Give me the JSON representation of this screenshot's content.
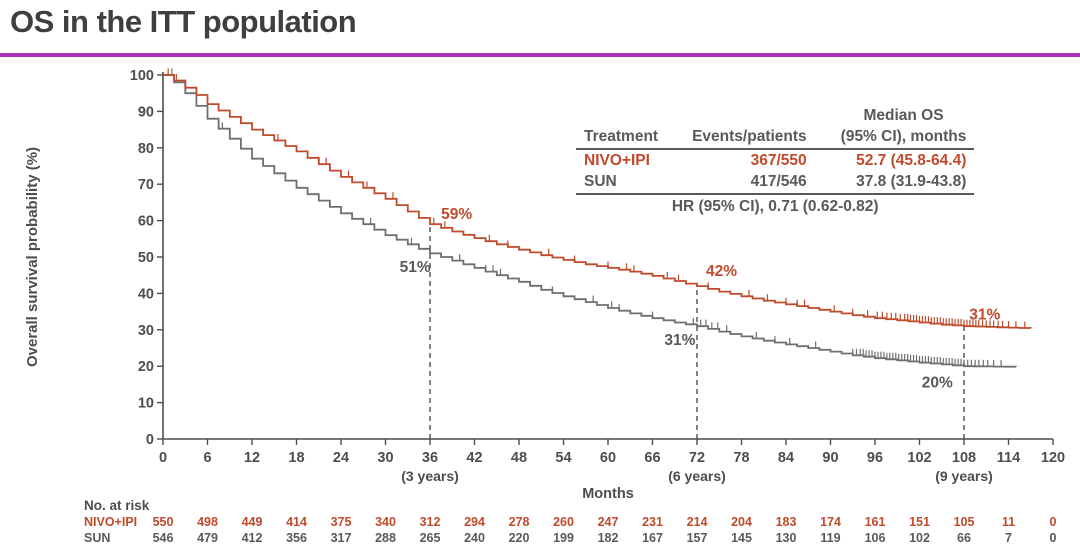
{
  "page": {
    "title": "OS in the ITT population",
    "accent_rule_color": "#ab31ba"
  },
  "summary_table": {
    "col_headers": {
      "treatment": "Treatment",
      "events": "Events/patients",
      "median_line1": "Median OS",
      "median_line2": "(95% CI), months"
    },
    "rows": [
      {
        "treatment": "NIVO+IPI",
        "events": "367/550",
        "median": "52.7 (45.8-64.4)",
        "color": "#c04a2c"
      },
      {
        "treatment": "SUN",
        "events": "417/546",
        "median": "37.8 (31.9-43.8)",
        "color": "#595959"
      }
    ],
    "footer": "HR (95% CI), 0.71 (0.62-0.82)"
  },
  "chart_data": {
    "type": "line",
    "subtype": "kaplan-meier-step",
    "x_axis": {
      "label": "Months",
      "min": 0,
      "max": 120,
      "tick_interval": 6,
      "bold_ticks": [
        36,
        72,
        108
      ],
      "milestone_labels": [
        {
          "month": 36,
          "label": "(3 years)"
        },
        {
          "month": 72,
          "label": "(6 years)"
        },
        {
          "month": 108,
          "label": "(9 years)"
        }
      ]
    },
    "y_axis": {
      "label": "Overall survival probability (%)",
      "min": 0,
      "max": 100,
      "tick_interval": 10
    },
    "series": [
      {
        "name": "NIVO+IPI",
        "color": "#c04a2c",
        "survival_points": [
          [
            0,
            100
          ],
          [
            1.5,
            98.5
          ],
          [
            3,
            96.5
          ],
          [
            4.5,
            94.5
          ],
          [
            6,
            92
          ],
          [
            9,
            88.5
          ],
          [
            12,
            85
          ],
          [
            15,
            82
          ],
          [
            18,
            79
          ],
          [
            21,
            75.5
          ],
          [
            24,
            72
          ],
          [
            27,
            69
          ],
          [
            30,
            66
          ],
          [
            33,
            62.5
          ],
          [
            36,
            59
          ],
          [
            39,
            57
          ],
          [
            42,
            55.2
          ],
          [
            45,
            53.5
          ],
          [
            48,
            52
          ],
          [
            51,
            50.5
          ],
          [
            54,
            49.2
          ],
          [
            57,
            48
          ],
          [
            60,
            47
          ],
          [
            63,
            46
          ],
          [
            66,
            44.8
          ],
          [
            69,
            43.4
          ],
          [
            72,
            42
          ],
          [
            75,
            40.5
          ],
          [
            78,
            39.2
          ],
          [
            81,
            38
          ],
          [
            84,
            37
          ],
          [
            87,
            36
          ],
          [
            90,
            35
          ],
          [
            93,
            34
          ],
          [
            96,
            33.2
          ],
          [
            99,
            32.6
          ],
          [
            102,
            32
          ],
          [
            105,
            31.4
          ],
          [
            108,
            31
          ],
          [
            111,
            30.8
          ],
          [
            114,
            30.6
          ],
          [
            117,
            30.4
          ]
        ],
        "censor_marks": [
          0.7,
          1.8,
          13.5,
          15.5,
          16.5,
          19.5,
          21,
          22,
          25,
          27.5,
          31,
          36.5,
          38,
          44,
          46.5,
          52,
          55.5,
          60,
          62.5,
          63.5,
          68,
          69.5,
          73.5,
          79,
          81.5,
          84,
          85.5,
          86.5,
          90.5,
          93,
          95,
          96.3,
          97,
          97.6,
          98.2,
          98.8,
          99.4,
          100,
          100.4,
          100.8,
          101.2,
          101.6,
          102,
          102.4,
          102.8,
          103.2,
          103.6,
          104,
          104.4,
          104.8,
          105.2,
          105.6,
          106,
          106.4,
          106.8,
          107.2,
          107.6,
          108,
          108.4,
          108.8,
          109.2,
          109.6,
          110,
          110.5,
          111,
          111.5,
          112,
          112.6,
          113.2,
          114,
          115,
          116.2
        ]
      },
      {
        "name": "SUN",
        "color": "#6f6f6f",
        "survival_points": [
          [
            0,
            100
          ],
          [
            1.5,
            98
          ],
          [
            3,
            95
          ],
          [
            4.5,
            91.5
          ],
          [
            6,
            88
          ],
          [
            9,
            82.5
          ],
          [
            12,
            77
          ],
          [
            15,
            73
          ],
          [
            18,
            69
          ],
          [
            21,
            65.5
          ],
          [
            24,
            62
          ],
          [
            27,
            59
          ],
          [
            30,
            56
          ],
          [
            33,
            53.5
          ],
          [
            36,
            51
          ],
          [
            39,
            49
          ],
          [
            42,
            47
          ],
          [
            45,
            45
          ],
          [
            48,
            43.2
          ],
          [
            51,
            41
          ],
          [
            54,
            39.2
          ],
          [
            57,
            37.6
          ],
          [
            60,
            36
          ],
          [
            63,
            34.5
          ],
          [
            66,
            33.2
          ],
          [
            69,
            32
          ],
          [
            72,
            31
          ],
          [
            75,
            29.5
          ],
          [
            78,
            28.2
          ],
          [
            81,
            27
          ],
          [
            84,
            26
          ],
          [
            87,
            25
          ],
          [
            90,
            24
          ],
          [
            93,
            23
          ],
          [
            96,
            22.2
          ],
          [
            99,
            21.6
          ],
          [
            102,
            21
          ],
          [
            105,
            20.5
          ],
          [
            108,
            20
          ],
          [
            112,
            19.9
          ],
          [
            115,
            19.8
          ]
        ],
        "censor_marks": [
          1.2,
          8,
          9,
          22.5,
          28,
          33.5,
          40,
          43.5,
          44.5,
          45.5,
          52.5,
          58,
          60.5,
          61.5,
          66,
          71.5,
          72.5,
          73.2,
          74,
          74.8,
          76,
          80,
          82.5,
          84.5,
          88,
          93,
          93.5,
          94,
          94.4,
          94.8,
          95.2,
          95.6,
          96,
          96.4,
          96.8,
          97.2,
          97.6,
          98,
          98.4,
          98.8,
          99.2,
          99.6,
          100,
          100.4,
          100.8,
          101.2,
          101.6,
          102,
          102.4,
          102.8,
          103.2,
          103.6,
          104,
          104.4,
          104.8,
          105.2,
          105.6,
          106,
          106.4,
          106.8,
          107.2,
          107.6,
          108,
          108.5,
          109,
          109.5,
          110,
          110.6,
          111.2,
          112,
          113
        ]
      }
    ],
    "dashed_milestones": [
      {
        "month": 36,
        "top_pct": 59
      },
      {
        "month": 72,
        "top_pct": 42
      },
      {
        "month": 108,
        "top_pct": 31
      }
    ],
    "annotations": [
      {
        "text": "59%",
        "month": 39.6,
        "pct": 61.8,
        "color": "#c04a2c"
      },
      {
        "text": "51%",
        "month": 34.0,
        "pct": 47.3,
        "color": "#595959"
      },
      {
        "text": "42%",
        "month": 75.3,
        "pct": 46.2,
        "color": "#c04a2c"
      },
      {
        "text": "31%",
        "month": 69.7,
        "pct": 27.2,
        "color": "#595959"
      },
      {
        "text": "31%",
        "month": 110.8,
        "pct": 34.2,
        "color": "#c04a2c"
      },
      {
        "text": "20%",
        "month": 104.4,
        "pct": 15.5,
        "color": "#595959"
      }
    ],
    "risk_table": {
      "title": "No. at risk",
      "rows": [
        {
          "name": "NIVO+IPI",
          "color": "#c04a2c",
          "values": [
            550,
            498,
            449,
            414,
            375,
            340,
            312,
            294,
            278,
            260,
            247,
            231,
            214,
            204,
            183,
            174,
            161,
            151,
            105,
            11,
            0
          ]
        },
        {
          "name": "SUN",
          "color": "#595959",
          "values": [
            546,
            479,
            412,
            356,
            317,
            288,
            265,
            240,
            220,
            199,
            182,
            167,
            157,
            145,
            130,
            119,
            106,
            102,
            66,
            7,
            0
          ]
        }
      ]
    }
  }
}
